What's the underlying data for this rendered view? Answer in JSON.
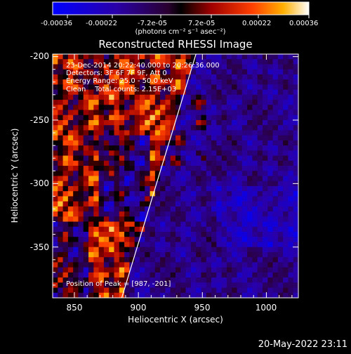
{
  "colorbar": {
    "tick_labels": [
      "-0.00036",
      "-0.00022",
      "-7.2e-05",
      "7.2e-05",
      "0.00022",
      "0.00036"
    ],
    "unit_label": "(photons cm⁻² s⁻¹ asec⁻²)",
    "range": [
      -0.00036,
      0.00036
    ]
  },
  "chart_data": {
    "type": "heatmap",
    "title": "Reconstructed RHESSI Image",
    "xlabel": "Heliocentric X (arcsec)",
    "ylabel": "Heliocentric Y (arcsec)",
    "xlim": [
      833,
      1025
    ],
    "ylim": [
      -390,
      -198
    ],
    "x_ticks": [
      850,
      900,
      950,
      1000
    ],
    "y_ticks": [
      -200,
      -250,
      -300,
      -350
    ],
    "x_tick_labels": [
      "850",
      "900",
      "950",
      "1000"
    ],
    "y_tick_labels": [
      "-200",
      "-250",
      "-300",
      "-350"
    ],
    "limb_line": [
      [
        887,
        -390
      ],
      [
        945,
        -198
      ]
    ],
    "annotations": [
      "23-Dec-2014 20:22:40.000 to 20:26:36.000",
      "Detectors: 3F 6F 7F 9F, Att 0",
      "Energy Range: 25.0 - 50.0 keV",
      "Clean    Total counts: 2.15E+03"
    ],
    "peak_label": "Position of Peak = [987, -201]",
    "peak": [
      987,
      -201
    ]
  },
  "footer": {
    "timestamp": "20-May-2022 23:11"
  }
}
